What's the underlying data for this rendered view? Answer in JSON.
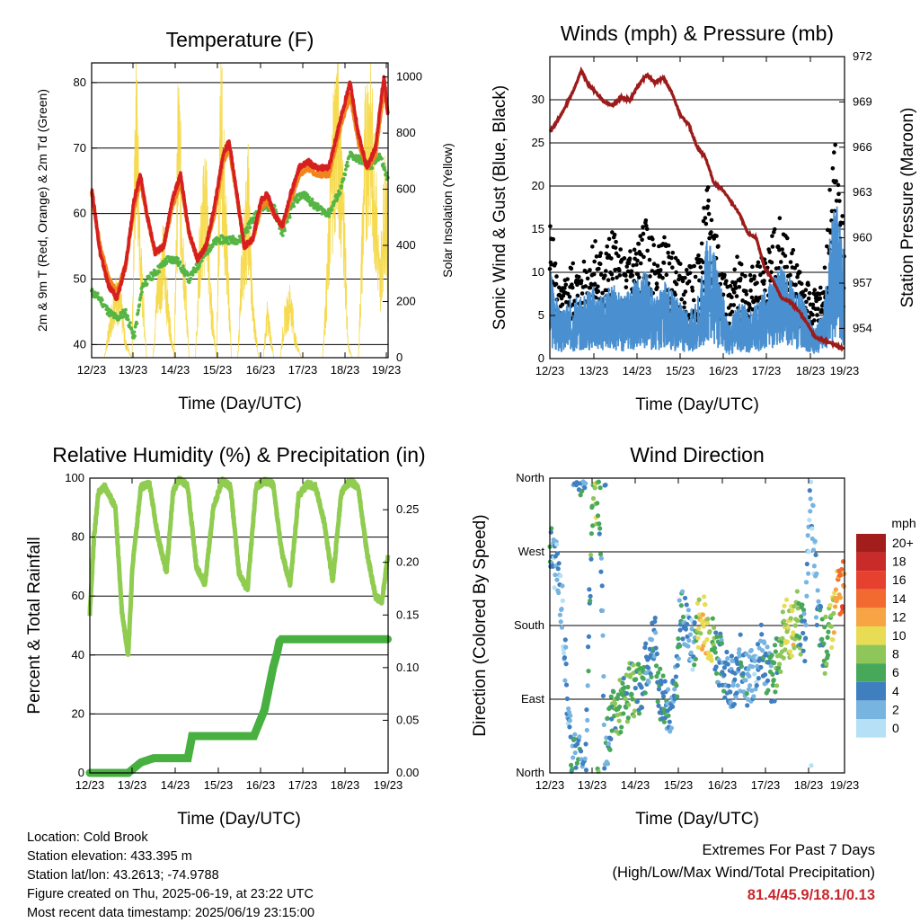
{
  "colors": {
    "temp_2m": "#d62020",
    "temp_9m": "#f0851e",
    "dewpoint": "#55b545",
    "solar": "#f5d63c",
    "gust": "#000000",
    "wind": "#4a90d0",
    "pressure": "#9b1b1b",
    "rh": "#8fcc50",
    "precip": "#47b040"
  },
  "time_axis": {
    "ticks": [
      "12/23",
      "13/23",
      "14/23",
      "15/23",
      "16/23",
      "17/23",
      "18/23",
      "19/23"
    ]
  },
  "meta": {
    "location": "Location: Cold Brook",
    "elevation": "Station elevation: 433.395 m",
    "latlon": "Station lat/lon: 43.2613; -74.9788",
    "created": "Figure created on Thu, 2025-06-19, at 23:22 UTC",
    "latest": "Most recent data timestamp: 2025/06/19 23:15:00"
  },
  "extremes": {
    "title": "Extremes For Past 7 Days",
    "subtitle": "(High/Low/Max Wind/Total Precipitation)",
    "values": "81.4/45.9/18.1/0.13"
  },
  "chart_data": [
    {
      "type": "line",
      "title": "Temperature (F)",
      "xlabel": "Time (Day/UTC)",
      "ylabel": "2m & 9m T (Red, Orange) & 2m Td (Green)",
      "y2label": "Solar Insolation (Yellow)",
      "ylim": [
        38,
        83
      ],
      "yticks": [
        40,
        50,
        60,
        70,
        80
      ],
      "y2lim": [
        0,
        1050
      ],
      "y2ticks": [
        0,
        200,
        400,
        600,
        800,
        1000
      ],
      "xlim": [
        12,
        19
      ],
      "grid": true,
      "series": [
        {
          "name": "2m T",
          "x": [
            12.0,
            12.2,
            12.4,
            12.6,
            12.8,
            13.0,
            13.15,
            13.3,
            13.5,
            13.7,
            13.9,
            14.1,
            14.3,
            14.5,
            14.7,
            14.9,
            15.1,
            15.25,
            15.45,
            15.6,
            15.8,
            16.0,
            16.15,
            16.3,
            16.5,
            16.7,
            16.9,
            17.1,
            17.3,
            17.6,
            17.9,
            18.1,
            18.3,
            18.5,
            18.7,
            18.9,
            19.0
          ],
          "y": [
            64,
            54,
            49,
            47,
            52,
            62,
            66,
            60,
            54,
            55,
            62,
            66,
            57,
            53,
            55,
            61,
            69,
            71,
            62,
            55,
            56,
            62,
            63,
            60,
            58,
            63,
            67,
            68,
            67,
            67,
            75,
            80,
            72,
            67,
            70,
            81,
            75
          ]
        },
        {
          "name": "9m T",
          "x": [
            12.0,
            12.2,
            12.4,
            12.6,
            12.8,
            13.0,
            13.15,
            13.3,
            13.5,
            13.7,
            13.9,
            14.1,
            14.3,
            14.5,
            14.7,
            14.9,
            15.1,
            15.25,
            15.45,
            15.6,
            15.8,
            16.0,
            16.15,
            16.3,
            16.5,
            16.7,
            16.9,
            17.1,
            17.3,
            17.6,
            17.9,
            18.1,
            18.3,
            18.5,
            18.7,
            18.9,
            19.0
          ],
          "y": [
            63,
            55,
            50,
            48,
            52,
            61,
            65,
            60,
            54,
            55,
            61,
            65,
            57,
            53,
            55,
            60,
            68,
            70,
            62,
            55,
            56,
            61,
            62,
            60,
            58,
            62,
            66,
            67,
            66,
            66,
            74,
            78,
            71,
            67,
            69,
            79,
            75
          ]
        },
        {
          "name": "2m Td",
          "x": [
            12.0,
            12.2,
            12.4,
            12.6,
            12.8,
            13.0,
            13.2,
            13.5,
            13.8,
            14.0,
            14.3,
            14.5,
            14.8,
            15.0,
            15.3,
            15.5,
            15.8,
            16.0,
            16.3,
            16.5,
            16.8,
            17.0,
            17.3,
            17.6,
            17.9,
            18.1,
            18.4,
            18.6,
            18.8,
            19.0
          ],
          "y": [
            48,
            47,
            45,
            44,
            45,
            41,
            49,
            51,
            53,
            53,
            50,
            52,
            55,
            56,
            56,
            56,
            59,
            61,
            61,
            57,
            62,
            63,
            61,
            60,
            64,
            69,
            68,
            67,
            69,
            65
          ]
        },
        {
          "name": "Solar",
          "axis": "y2",
          "x": [
            12.0,
            12.3,
            12.45,
            12.55,
            12.7,
            12.8,
            12.95,
            13.05,
            13.15,
            13.3,
            13.45,
            13.55,
            13.7,
            13.8,
            13.95,
            14.05,
            14.15,
            14.3,
            14.45,
            14.55,
            14.7,
            14.8,
            14.95,
            15.05,
            15.15,
            15.3,
            15.45,
            15.55,
            15.7,
            15.8,
            15.95,
            16.05,
            16.15,
            16.3,
            16.45,
            16.55,
            16.7,
            16.8,
            16.95,
            17.05,
            17.15,
            17.3,
            17.45,
            17.55,
            17.7,
            17.8,
            17.95,
            18.05,
            18.15,
            18.3,
            18.45,
            18.55,
            18.7,
            18.8,
            18.95,
            19.0
          ],
          "y": [
            0,
            0,
            150,
            260,
            200,
            60,
            0,
            1000,
            400,
            0,
            0,
            280,
            420,
            200,
            0,
            950,
            500,
            0,
            0,
            420,
            700,
            250,
            0,
            1000,
            600,
            0,
            0,
            380,
            650,
            200,
            0,
            0,
            180,
            0,
            0,
            150,
            240,
            80,
            0,
            0,
            0,
            0,
            0,
            280,
            850,
            1000,
            600,
            50,
            0,
            0,
            800,
            1000,
            650,
            300,
            700,
            200
          ]
        }
      ]
    },
    {
      "type": "scatter",
      "title": "Winds (mph) & Pressure (mb)",
      "xlabel": "Time (Day/UTC)",
      "ylabel": "Sonic Wind & Gust (Blue, Black)",
      "y2label": "Station Pressure (Maroon)",
      "ylim": [
        0,
        35
      ],
      "yticks": [
        0,
        5,
        10,
        15,
        20,
        25,
        30
      ],
      "y2lim": [
        952.0,
        972.0
      ],
      "y2ticks": [
        954,
        957,
        960,
        963,
        966,
        969,
        972
      ],
      "xlim": [
        12,
        19
      ],
      "grid": true,
      "series": [
        {
          "name": "Gust",
          "x": [
            12.0,
            12.25,
            12.5,
            12.75,
            13.0,
            13.25,
            13.5,
            13.75,
            14.0,
            14.25,
            14.5,
            14.75,
            15.0,
            15.25,
            15.5,
            15.75,
            16.0,
            16.25,
            16.5,
            16.75,
            17.0,
            17.25,
            17.5,
            17.75,
            18.0,
            18.25,
            18.5,
            18.75,
            19.0
          ],
          "y": [
            13,
            6,
            9,
            8,
            11,
            10,
            12,
            9,
            11,
            13,
            10,
            11,
            9,
            8,
            9,
            16,
            12,
            6,
            10,
            8,
            9,
            11,
            13,
            10,
            8,
            6,
            7,
            21,
            11
          ]
        },
        {
          "name": "Wind",
          "x": [
            12.0,
            12.25,
            12.5,
            12.75,
            13.0,
            13.25,
            13.5,
            13.75,
            14.0,
            14.25,
            14.5,
            14.75,
            15.0,
            15.25,
            15.5,
            15.75,
            16.0,
            16.25,
            16.5,
            16.75,
            17.0,
            17.25,
            17.5,
            17.75,
            18.0,
            18.25,
            18.5,
            18.75,
            19.0
          ],
          "y": [
            6,
            3,
            4,
            4,
            5,
            4,
            5,
            4,
            5,
            6,
            4,
            5,
            4,
            3,
            4,
            8,
            6,
            2,
            4,
            3,
            4,
            5,
            6,
            5,
            4,
            2,
            3,
            11,
            7
          ]
        },
        {
          "name": "Pressure",
          "axis": "y2",
          "x": [
            12.0,
            12.3,
            12.6,
            12.75,
            12.9,
            13.1,
            13.3,
            13.5,
            13.7,
            13.9,
            14.1,
            14.3,
            14.5,
            14.7,
            14.9,
            15.1,
            15.3,
            15.5,
            15.7,
            15.9,
            16.1,
            16.3,
            16.5,
            16.7,
            16.9,
            17.1,
            17.3,
            17.5,
            17.7,
            17.9,
            18.1,
            18.3,
            18.5,
            18.7,
            18.85,
            19.0
          ],
          "y": [
            967.0,
            968.3,
            970.0,
            971.1,
            970.2,
            969.6,
            969.0,
            968.8,
            969.3,
            969.1,
            970.1,
            970.8,
            970.3,
            970.6,
            969.6,
            968.1,
            967.5,
            966.0,
            965.3,
            963.6,
            963.2,
            962.4,
            961.6,
            960.3,
            960.0,
            958.0,
            957.2,
            956.0,
            955.8,
            955.2,
            954.4,
            953.4,
            953.2,
            953.0,
            952.8,
            952.6
          ]
        }
      ]
    },
    {
      "type": "line",
      "title": "Relative Humidity (%) & Precipitation (in)",
      "xlabel": "Time (Day/UTC)",
      "ylabel": "Percent & Total Rainfall",
      "ylim": [
        0,
        100
      ],
      "yticks": [
        0,
        20,
        40,
        60,
        80,
        100
      ],
      "y2lim": [
        0,
        0.28
      ],
      "y2ticks": [
        0.0,
        0.05,
        0.1,
        0.15,
        0.2,
        0.25
      ],
      "xlim": [
        12,
        19
      ],
      "grid": true,
      "series": [
        {
          "name": "RH",
          "x": [
            12.0,
            12.1,
            12.2,
            12.35,
            12.6,
            12.75,
            12.9,
            13.0,
            13.2,
            13.4,
            13.6,
            13.8,
            13.95,
            14.1,
            14.3,
            14.5,
            14.7,
            14.9,
            15.1,
            15.3,
            15.5,
            15.7,
            15.9,
            16.1,
            16.3,
            16.5,
            16.7,
            16.9,
            17.1,
            17.3,
            17.5,
            17.7,
            17.9,
            18.1,
            18.3,
            18.5,
            18.7,
            18.85,
            19.0
          ],
          "y": [
            54,
            80,
            95,
            97,
            90,
            55,
            40,
            70,
            97,
            98,
            80,
            68,
            95,
            100,
            97,
            70,
            64,
            90,
            99,
            97,
            68,
            62,
            97,
            99,
            98,
            75,
            64,
            94,
            98,
            97,
            85,
            65,
            95,
            99,
            97,
            75,
            60,
            58,
            74
          ]
        },
        {
          "name": "Precipitation",
          "axis": "y2",
          "x": [
            12.0,
            12.9,
            13.2,
            13.5,
            14.0,
            14.3,
            14.4,
            15.0,
            15.5,
            15.85,
            16.0,
            16.1,
            16.2,
            16.3,
            16.4,
            16.45,
            16.5,
            17.0,
            18.0,
            19.0
          ],
          "y": [
            0.0,
            0.0,
            0.01,
            0.014,
            0.014,
            0.014,
            0.035,
            0.035,
            0.035,
            0.035,
            0.05,
            0.06,
            0.08,
            0.1,
            0.115,
            0.125,
            0.127,
            0.127,
            0.127,
            0.127
          ]
        }
      ]
    },
    {
      "type": "scatter",
      "title": "Wind Direction",
      "xlabel": "Time (Day/UTC)",
      "ylabel": "Direction (Colored By Speed)",
      "ylim": [
        0,
        360
      ],
      "yticks": [
        0,
        90,
        180,
        270,
        360
      ],
      "ytick_labels": [
        "North",
        "East",
        "South",
        "West",
        "North"
      ],
      "xlim": [
        12,
        19
      ],
      "grid": true,
      "legend": {
        "title": "mph",
        "position": "right",
        "labels": [
          "20+",
          "18",
          "16",
          "14",
          "12",
          "10",
          "8",
          "6",
          "4",
          "2",
          "0"
        ],
        "colors": [
          "#a31d1d",
          "#c92a2a",
          "#e6402e",
          "#f26a30",
          "#f7a544",
          "#e9dc55",
          "#8ec65a",
          "#48a85a",
          "#3f7fc0",
          "#77b4e0",
          "#b5e0f5"
        ]
      },
      "series": [
        {
          "name": "Direction",
          "x": [
            12.0,
            12.05,
            12.2,
            12.3,
            12.45,
            12.5,
            12.7,
            12.85,
            13.0,
            13.1,
            13.2,
            13.3,
            13.45,
            13.6,
            13.8,
            13.9,
            14.05,
            14.2,
            14.35,
            14.5,
            14.6,
            14.75,
            14.9,
            15.0,
            15.1,
            15.25,
            15.4,
            15.55,
            15.7,
            15.8,
            15.95,
            16.1,
            16.25,
            16.4,
            16.55,
            16.7,
            16.85,
            17.0,
            17.15,
            17.3,
            17.45,
            17.6,
            17.75,
            17.9,
            18.05,
            18.2,
            18.35,
            18.5,
            18.65,
            18.8,
            18.95,
            19.0
          ],
          "y": [
            280,
            270,
            240,
            200,
            60,
            30,
            10,
            5,
            330,
            340,
            320,
            20,
            60,
            80,
            90,
            100,
            95,
            110,
            140,
            160,
            100,
            90,
            80,
            100,
            200,
            180,
            150,
            190,
            180,
            170,
            150,
            130,
            120,
            100,
            140,
            110,
            120,
            150,
            130,
            110,
            150,
            180,
            170,
            190,
            160,
            350,
            200,
            150,
            170,
            210,
            230,
            210
          ],
          "speed": [
            6,
            3,
            2,
            1,
            3,
            4,
            4,
            3,
            6,
            8,
            5,
            3,
            5,
            7,
            6,
            7,
            6,
            5,
            3,
            4,
            5,
            4,
            3,
            4,
            5,
            3,
            2,
            10,
            11,
            9,
            5,
            4,
            3,
            3,
            4,
            3,
            2,
            3,
            4,
            5,
            7,
            9,
            10,
            8,
            4,
            1,
            3,
            5,
            8,
            12,
            15,
            14
          ]
        }
      ]
    }
  ]
}
